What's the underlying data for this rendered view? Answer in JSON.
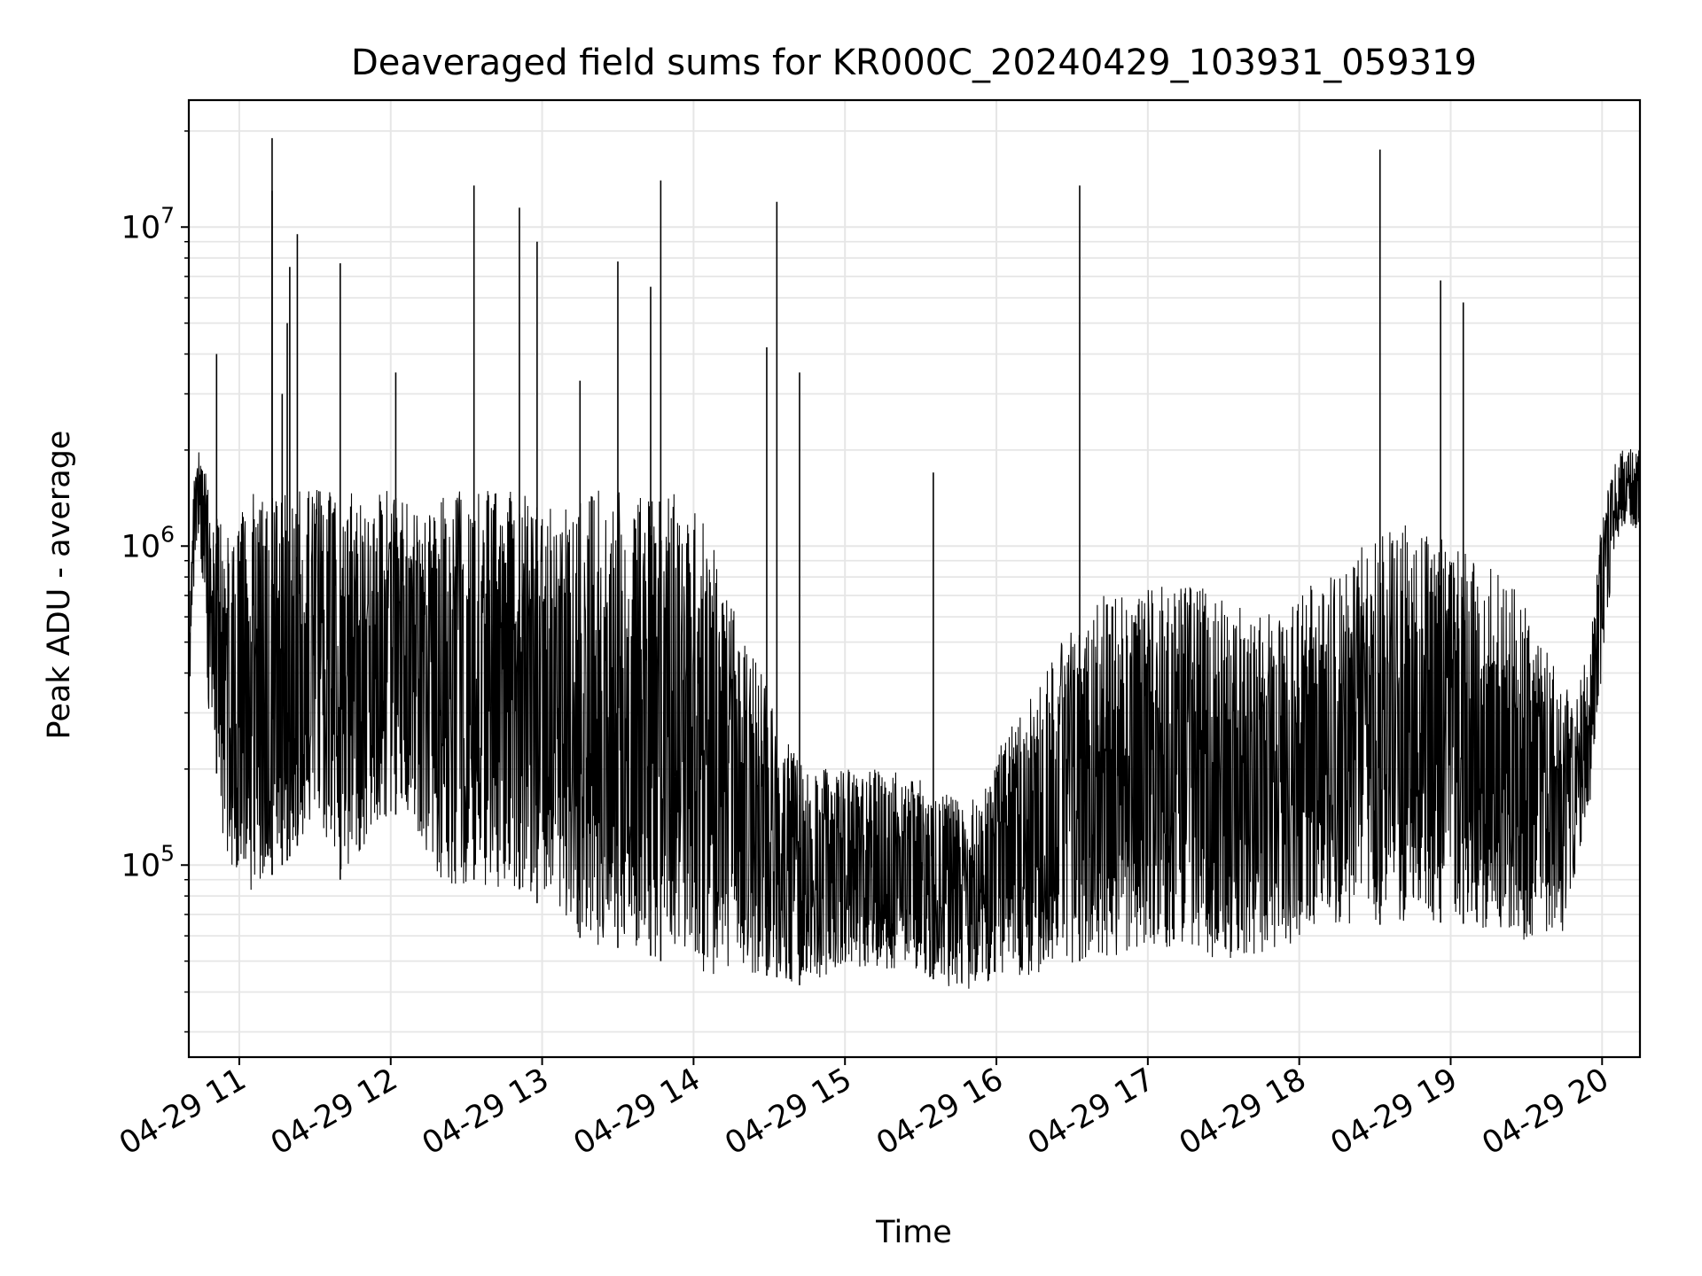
{
  "chart_data": {
    "type": "line",
    "title": "Deaveraged field sums for KR000C_20240429_103931_059319",
    "xlabel": "Time",
    "ylabel": "Peak ADU - average",
    "xlim": [
      "2024-04-29 10:40",
      "2024-04-29 20:15"
    ],
    "ylim": [
      25000,
      25000000
    ],
    "y_scale": "log",
    "grid": true,
    "line_color": "#000000",
    "grid_color": "#e6e6e6",
    "x_ticks": [
      {
        "value": "2024-04-29 11:00",
        "label": "04-29 11"
      },
      {
        "value": "2024-04-29 12:00",
        "label": "04-29 12"
      },
      {
        "value": "2024-04-29 13:00",
        "label": "04-29 13"
      },
      {
        "value": "2024-04-29 14:00",
        "label": "04-29 14"
      },
      {
        "value": "2024-04-29 15:00",
        "label": "04-29 15"
      },
      {
        "value": "2024-04-29 16:00",
        "label": "04-29 16"
      },
      {
        "value": "2024-04-29 17:00",
        "label": "04-29 17"
      },
      {
        "value": "2024-04-29 18:00",
        "label": "04-29 18"
      },
      {
        "value": "2024-04-29 19:00",
        "label": "04-29 19"
      },
      {
        "value": "2024-04-29 20:00",
        "label": "04-29 20"
      }
    ],
    "y_ticks": [
      {
        "value": 100000,
        "base": "10",
        "exp": "5"
      },
      {
        "value": 1000000,
        "base": "10",
        "exp": "6"
      },
      {
        "value": 10000000,
        "base": "10",
        "exp": "7"
      }
    ],
    "series": [
      {
        "x": [
          "2024-04-29 10:40",
          "2024-04-29 10:42",
          "2024-04-29 10:44",
          "2024-04-29 10:46",
          "2024-04-29 10:48",
          "2024-04-29 10:50",
          "2024-04-29 10:52",
          "2024-04-29 10:55",
          "2024-04-29 10:58",
          "2024-04-29 11:01",
          "2024-04-29 11:05",
          "2024-04-29 11:08",
          "2024-04-29 11:12",
          "2024-04-29 11:15",
          "2024-04-29 11:18",
          "2024-04-29 11:21",
          "2024-04-29 11:25",
          "2024-04-29 11:28",
          "2024-04-29 11:32",
          "2024-04-29 11:35",
          "2024-04-29 11:38",
          "2024-04-29 11:41",
          "2024-04-29 11:44",
          "2024-04-29 11:48",
          "2024-04-29 11:52",
          "2024-04-29 11:56",
          "2024-04-29 12:00",
          "2024-04-29 12:05",
          "2024-04-29 12:10",
          "2024-04-29 12:15",
          "2024-04-29 12:20",
          "2024-04-29 12:25",
          "2024-04-29 12:30",
          "2024-04-29 12:33",
          "2024-04-29 12:38",
          "2024-04-29 12:42",
          "2024-04-29 12:47",
          "2024-04-29 12:52",
          "2024-04-29 12:57",
          "2024-04-29 13:02",
          "2024-04-29 13:08",
          "2024-04-29 13:14",
          "2024-04-29 13:20",
          "2024-04-29 13:25",
          "2024-04-29 13:30",
          "2024-04-29 13:35",
          "2024-04-29 13:40",
          "2024-04-29 13:45",
          "2024-04-29 13:48",
          "2024-04-29 13:52",
          "2024-04-29 13:58",
          "2024-04-29 14:05",
          "2024-04-29 14:12",
          "2024-04-29 14:20",
          "2024-04-29 14:28",
          "2024-04-29 14:32",
          "2024-04-29 14:38",
          "2024-04-29 14:45",
          "2024-04-29 14:52",
          "2024-04-29 15:00",
          "2024-04-29 15:08",
          "2024-04-29 15:16",
          "2024-04-29 15:24",
          "2024-04-29 15:32",
          "2024-04-29 15:40",
          "2024-04-29 15:48",
          "2024-04-29 15:55",
          "2024-04-29 16:02",
          "2024-04-29 16:10",
          "2024-04-29 16:18",
          "2024-04-29 16:26",
          "2024-04-29 16:33",
          "2024-04-29 16:40",
          "2024-04-29 16:48",
          "2024-04-29 16:56",
          "2024-04-29 17:04",
          "2024-04-29 17:12",
          "2024-04-29 17:20",
          "2024-04-29 17:28",
          "2024-04-29 17:36",
          "2024-04-29 17:44",
          "2024-04-29 17:52",
          "2024-04-29 18:00",
          "2024-04-29 18:08",
          "2024-04-29 18:16",
          "2024-04-29 18:24",
          "2024-04-29 18:32",
          "2024-04-29 18:40",
          "2024-04-29 18:48",
          "2024-04-29 18:56",
          "2024-04-29 19:04",
          "2024-04-29 19:12",
          "2024-04-29 19:20",
          "2024-04-29 19:28",
          "2024-04-29 19:36",
          "2024-04-29 19:44",
          "2024-04-29 19:50",
          "2024-04-29 19:55",
          "2024-04-29 20:00",
          "2024-04-29 20:05",
          "2024-04-29 20:10",
          "2024-04-29 20:15"
        ],
        "min": [
          300000,
          700000,
          1000000,
          600000,
          300000,
          250000,
          150000,
          100000,
          100000,
          90000,
          80000,
          85000,
          90000,
          100000,
          100000,
          110000,
          120000,
          130000,
          110000,
          100000,
          90000,
          90000,
          100000,
          110000,
          120000,
          130000,
          140000,
          150000,
          120000,
          100000,
          90000,
          85000,
          80000,
          90000,
          85000,
          85000,
          80000,
          85000,
          75000,
          80000,
          70000,
          60000,
          55000,
          55000,
          55000,
          55000,
          55000,
          50000,
          50000,
          50000,
          48000,
          45000,
          45000,
          45000,
          45000,
          45000,
          42000,
          42000,
          45000,
          48000,
          48000,
          47000,
          46000,
          45000,
          42000,
          40000,
          40000,
          45000,
          45000,
          45000,
          48000,
          50000,
          50000,
          52000,
          55000,
          55000,
          55000,
          52000,
          50000,
          50000,
          52000,
          55000,
          58000,
          62000,
          65000,
          65000,
          65000,
          66000,
          66000,
          66000,
          66000,
          62000,
          60000,
          58000,
          58000,
          60000,
          100000,
          150000,
          400000,
          1000000,
          1200000,
          1100000
        ],
        "max": [
          500000,
          1600000,
          2000000,
          1800000,
          1500000,
          1300000,
          1200000,
          1100000,
          1200000,
          1300000,
          1500000,
          1500000,
          1500000,
          1500000,
          1500000,
          1500000,
          1500000,
          1500000,
          1500000,
          1500000,
          1500000,
          1500000,
          1500000,
          1500000,
          1500000,
          1500000,
          1500000,
          1400000,
          1300000,
          1300000,
          1400000,
          1500000,
          1500000,
          1500000,
          1500000,
          1500000,
          1500000,
          1500000,
          1450000,
          1400000,
          1300000,
          1400000,
          1500000,
          1500000,
          1500000,
          1500000,
          1500000,
          1500000,
          1500000,
          1500000,
          1400000,
          1200000,
          800000,
          500000,
          400000,
          300000,
          250000,
          200000,
          200000,
          200000,
          200000,
          200000,
          200000,
          180000,
          170000,
          150000,
          180000,
          250000,
          300000,
          400000,
          500000,
          600000,
          700000,
          750000,
          800000,
          800000,
          800000,
          750000,
          700000,
          650000,
          600000,
          650000,
          700000,
          800000,
          900000,
          1000000,
          1100000,
          1200000,
          1200000,
          1100000,
          1000000,
          900000,
          800000,
          700000,
          500000,
          400000,
          350000,
          500000,
          1300000,
          1900000,
          2100000,
          2000000
        ],
        "spikes": [
          {
            "x": "2024-04-29 10:51",
            "y": 4000000
          },
          {
            "x": "2024-04-29 11:13",
            "y": 19000000
          },
          {
            "x": "2024-04-29 11:13",
            "y": 13000000
          },
          {
            "x": "2024-04-29 11:17",
            "y": 3000000
          },
          {
            "x": "2024-04-29 11:19",
            "y": 5000000
          },
          {
            "x": "2024-04-29 11:20",
            "y": 7500000
          },
          {
            "x": "2024-04-29 11:23",
            "y": 9500000
          },
          {
            "x": "2024-04-29 11:40",
            "y": 7700000
          },
          {
            "x": "2024-04-29 12:02",
            "y": 3500000
          },
          {
            "x": "2024-04-29 12:33",
            "y": 13500000
          },
          {
            "x": "2024-04-29 12:51",
            "y": 11500000
          },
          {
            "x": "2024-04-29 12:58",
            "y": 9000000
          },
          {
            "x": "2024-04-29 13:15",
            "y": 3300000
          },
          {
            "x": "2024-04-29 13:30",
            "y": 7800000
          },
          {
            "x": "2024-04-29 13:43",
            "y": 6500000
          },
          {
            "x": "2024-04-29 13:47",
            "y": 14000000
          },
          {
            "x": "2024-04-29 14:29",
            "y": 4200000
          },
          {
            "x": "2024-04-29 14:33",
            "y": 12000000
          },
          {
            "x": "2024-04-29 14:42",
            "y": 3500000
          },
          {
            "x": "2024-04-29 15:35",
            "y": 1700000
          },
          {
            "x": "2024-04-29 16:33",
            "y": 13500000
          },
          {
            "x": "2024-04-29 18:32",
            "y": 17500000
          },
          {
            "x": "2024-04-29 18:56",
            "y": 6800000
          },
          {
            "x": "2024-04-29 19:05",
            "y": 5800000
          }
        ]
      }
    ]
  }
}
